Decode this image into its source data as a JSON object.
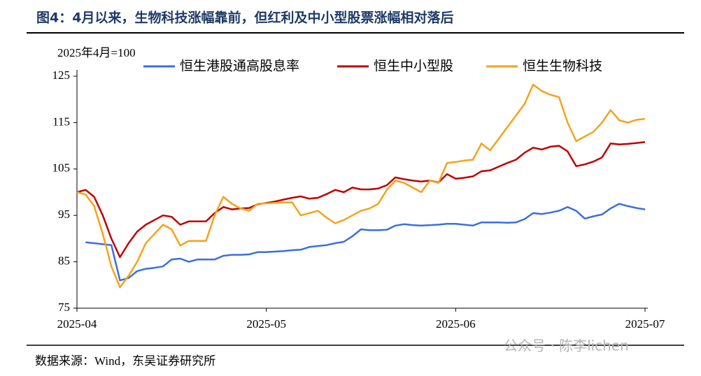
{
  "chart_data": {
    "type": "line",
    "title": "图4：4月以来，生物科技涨幅靠前，但红利及中小型股票涨幅相对落后",
    "y_label": "2025年4月=100",
    "source": "数据来源：Wind，东吴证券研究所",
    "watermark": "公众号 · 陈李lichen",
    "categories": [
      "2025-04",
      null,
      null,
      null,
      null,
      null,
      null,
      null,
      null,
      null,
      null,
      null,
      null,
      null,
      null,
      null,
      null,
      null,
      null,
      null,
      null,
      null,
      "2025-05",
      null,
      null,
      null,
      null,
      null,
      null,
      null,
      null,
      null,
      null,
      null,
      null,
      null,
      null,
      null,
      null,
      null,
      null,
      null,
      null,
      null,
      "2025-06",
      null,
      null,
      null,
      null,
      null,
      null,
      null,
      null,
      null,
      null,
      null,
      null,
      null,
      null,
      null,
      null,
      null,
      null,
      null,
      null,
      null,
      "2025-07"
    ],
    "ylim": [
      75,
      125
    ],
    "yticks": [
      75,
      85,
      95,
      105,
      115,
      125
    ],
    "series": [
      {
        "name": "恒生港股通高股息率",
        "color": "#3a6fe0",
        "values": [
          null,
          89.2,
          89,
          88.8,
          88.6,
          81,
          81.5,
          83,
          83.5,
          83.7,
          84,
          85.5,
          85.7,
          85,
          85.5,
          85.5,
          85.5,
          86.3,
          86.5,
          86.5,
          86.6,
          87.1,
          87.1,
          87.2,
          87.3,
          87.5,
          87.6,
          88.2,
          88.4,
          88.6,
          89,
          89.3,
          90.5,
          92,
          91.8,
          91.8,
          91.9,
          92.8,
          93.1,
          92.9,
          92.8,
          92.9,
          93,
          93.2,
          93.2,
          93,
          92.8,
          93.5,
          93.5,
          93.5,
          93.4,
          93.5,
          94.2,
          95.5,
          95.3,
          95.6,
          96,
          96.8,
          96,
          94.3,
          94.8,
          95.2,
          96.5,
          97.5,
          97,
          96.6,
          96.3
        ]
      },
      {
        "name": "恒生中小型股",
        "color": "#c00000",
        "values": [
          100,
          100.5,
          99,
          95,
          90,
          86,
          89,
          91.5,
          93,
          94,
          95,
          94.7,
          93,
          93.7,
          93.7,
          93.7,
          95.5,
          96.8,
          96.3,
          96.5,
          96.6,
          97.4,
          97.7,
          98,
          98.4,
          98.8,
          99.1,
          98.6,
          98.8,
          99.6,
          100.5,
          100,
          101,
          100.6,
          100.6,
          100.8,
          101.5,
          103.2,
          102.8,
          102.5,
          102.3,
          102.5,
          102.1,
          103.9,
          102.9,
          103.1,
          103.4,
          104.5,
          104.7,
          105.5,
          106.3,
          107,
          108.5,
          109.6,
          109.2,
          109.8,
          110,
          108.8,
          105.6,
          106,
          106.6,
          107.5,
          110.5,
          110.3,
          110.4,
          110.6,
          110.8
        ]
      },
      {
        "name": "恒生生物科技",
        "color": "#f5a21b",
        "values": [
          100,
          99.5,
          97,
          91,
          84,
          79.5,
          82,
          85,
          89,
          91,
          93,
          92,
          88.5,
          89.5,
          89.5,
          89.5,
          95,
          99,
          97.5,
          96.5,
          96,
          97.5,
          97.6,
          97.7,
          97.8,
          97.8,
          95,
          95.5,
          96,
          94.5,
          93.3,
          94,
          95,
          96,
          96.5,
          97.5,
          100.5,
          102.5,
          102,
          101,
          100,
          102.5,
          102,
          106.3,
          106.5,
          106.8,
          107,
          110.5,
          109,
          111.5,
          114,
          116.5,
          119,
          123.2,
          121.8,
          121,
          120.5,
          115,
          111,
          112,
          113,
          115,
          117.7,
          115.5,
          115,
          115.6,
          115.8
        ]
      }
    ]
  }
}
